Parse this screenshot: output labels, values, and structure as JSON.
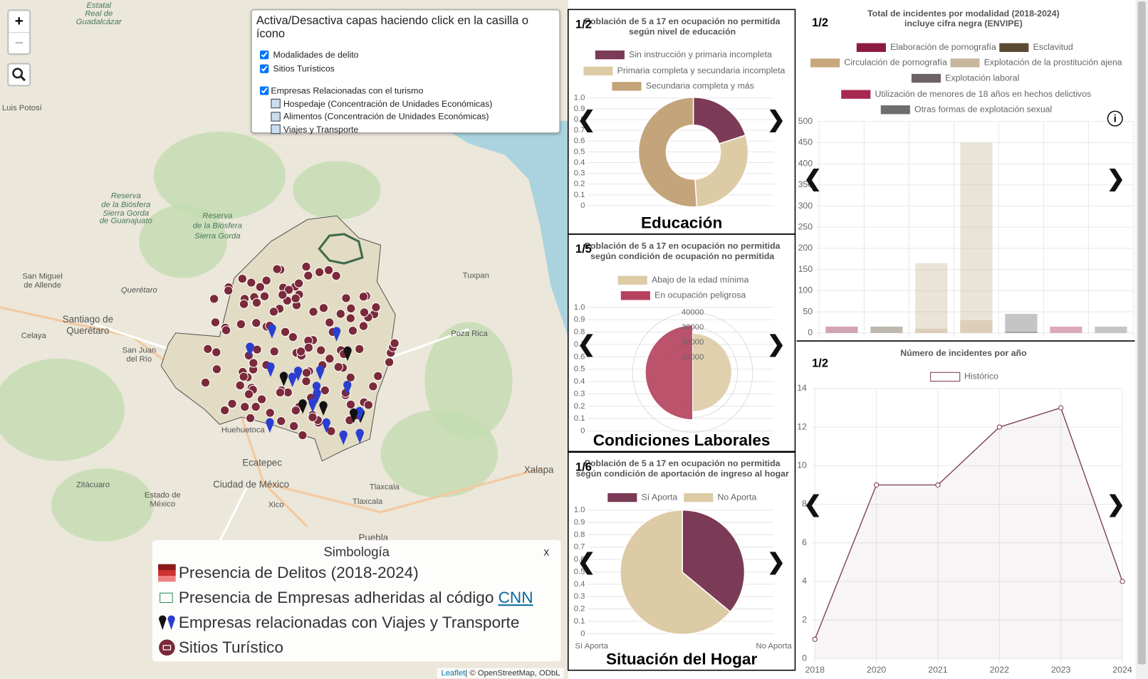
{
  "map": {
    "zoom_in": "+",
    "zoom_out": "−",
    "layers": {
      "title": "Activa/Desactiva capas haciendo click en la casilla o ícono",
      "items": [
        "Modalidades de delito",
        "Sitios Turísticos",
        "Empresas Relacionadas con el turismo"
      ],
      "subitems": [
        "Hospedaje (Concentración de Unidades Económicas)",
        "Alimentos (Concentración de Unidades Económicas)",
        "Viajes y Transporte"
      ]
    },
    "legend": {
      "title": "Simbología",
      "close": "x",
      "items": [
        "Presencia de Delitos (2018-2024)",
        "Presencia de Empresas adheridas al código",
        "Empresas relacionadas con Viajes y Transporte",
        "Sitios Turístico"
      ],
      "link": "CNN"
    },
    "attribution": [
      "Leaflet",
      "| ©",
      "OpenStreetMap",
      ", ODbL"
    ],
    "places": [
      "Estatal",
      "Real de",
      "Guadalcázar",
      "Luis Potosí",
      "Reserva",
      "de la Biósfera",
      "Sierra Gorda",
      "de Guanajuato",
      "Reserva",
      "de la Biósfera",
      "Sierra Gorda",
      "San Miguel",
      "de Allende",
      "Querétaro",
      "Santiago de",
      "Querétaro",
      "Celaya",
      "San Juan",
      "del Río",
      "Tuxpan",
      "Poza Rica",
      "Huehuetoca",
      "Ecatepec",
      "Ciudad de México",
      "Zitácuaro",
      "Estado de",
      "México",
      "Xico",
      "Tlaxcala",
      "Tlaxcala",
      "Xalapa",
      "Puebla"
    ]
  },
  "nav": {
    "prev": "❮",
    "next": "❯",
    "info": "i"
  },
  "panels": [
    {
      "page": "1/2",
      "caption": "Educación"
    },
    {
      "page": "1/5",
      "caption": "Condiciones Laborales"
    },
    {
      "page": "1/6",
      "caption": "Situación del Hogar"
    },
    {
      "page": "1/2"
    },
    {
      "page": "1/2"
    }
  ],
  "chart_data": [
    {
      "type": "doughnut",
      "title": [
        "Población de 5 a 17 en ocupación no permitida",
        "según nivel de educación"
      ],
      "categories": [
        "Sin instrucción y primaria incompleta",
        "Primaria completa y secundaria incompleta",
        "Secundaria completa y más"
      ],
      "values": [
        20,
        29,
        51
      ],
      "colors": [
        "#7b3a55",
        "#ddcba6",
        "#c4a47a"
      ],
      "ylim": [
        0,
        1
      ],
      "yticks": [
        0,
        0.1,
        0.2,
        0.3,
        0.4,
        0.5,
        0.6,
        0.7,
        0.8,
        0.9,
        {
          "value": 1,
          "label": "1.0"
        }
      ]
    },
    {
      "type": "polarArea",
      "title": [
        "Población de 5 a 17 en ocupación no permitida",
        "según condición de ocupación no permitida"
      ],
      "categories": [
        "Abajo de la edad mínima",
        "En ocupación peligrosa"
      ],
      "values": [
        26000,
        31500
      ],
      "colors": [
        "#ddcba6",
        "#b5415e"
      ],
      "rlim": [
        0,
        40000
      ],
      "rticks": [
        10000,
        20000,
        30000,
        40000
      ],
      "ylim": [
        0,
        1
      ],
      "yticks": [
        0,
        0.1,
        0.2,
        0.3,
        0.4,
        0.5,
        0.6,
        0.7,
        0.8,
        0.9,
        {
          "value": 1,
          "label": "1.0"
        }
      ]
    },
    {
      "type": "pie",
      "title": [
        "Población de 5 a 17 en ocupación no permitida",
        "según condición de aportación de ingreso al hogar"
      ],
      "categories": [
        "Sí Aporta",
        "No Aporta"
      ],
      "values": [
        36,
        64
      ],
      "colors": [
        "#7b3a55",
        "#ddcba6"
      ],
      "ylim": [
        0,
        1
      ],
      "yticks": [
        0,
        0.1,
        0.2,
        0.3,
        0.4,
        0.5,
        0.6,
        0.7,
        0.8,
        0.9,
        {
          "value": 1,
          "label": "1.0"
        }
      ]
    },
    {
      "type": "bar",
      "title": [
        "Total de incidentes por modalidad (2018-2024)",
        "incluye cifra negra (ENVIPE)"
      ],
      "categories": [
        null,
        null,
        null,
        null,
        null,
        null,
        null
      ],
      "series": [
        {
          "name": "Elaboración de pornografía",
          "color": "#8c1c3f",
          "values": [
            15,
            null,
            null,
            null,
            null,
            null,
            null
          ]
        },
        {
          "name": "Esclavitud",
          "color": "#5b4a33",
          "values": [
            null,
            15,
            null,
            null,
            null,
            null,
            null
          ]
        },
        {
          "name": "Circulación de pornografía",
          "color": "#c9a77c",
          "values": [
            null,
            null,
            10,
            30,
            null,
            null,
            null
          ]
        },
        {
          "name": "Explotación de la prostitución ajena",
          "color": "#c9b89e",
          "values": [
            null,
            null,
            165,
            450,
            null,
            null,
            null
          ]
        },
        {
          "name": "Explotación laboral",
          "color": "#6e6168",
          "values": [
            null,
            null,
            null,
            null,
            3,
            null,
            null
          ]
        },
        {
          "name": "Utilización de menores de 18 años en hechos delictivos",
          "color": "#a8294f",
          "values": [
            null,
            null,
            null,
            null,
            null,
            15,
            null
          ]
        },
        {
          "name": "Otras formas de explotación sexual",
          "color": "#6e6e6e",
          "values": [
            null,
            null,
            null,
            null,
            45,
            null,
            15
          ]
        }
      ],
      "ylim": [
        0,
        500
      ],
      "yticks": [
        0,
        50,
        100,
        150,
        200,
        250,
        300,
        350,
        400,
        450,
        500
      ],
      "grid": true
    },
    {
      "type": "line",
      "title": "Número de incidentes por año",
      "categories": [
        "2018",
        "2020",
        "2021",
        "2022",
        "2023",
        "2024"
      ],
      "series": [
        {
          "name": "Histórico",
          "color": "#7a3a4e",
          "values": [
            1,
            9,
            9,
            12,
            13,
            4
          ]
        }
      ],
      "ylim": [
        0,
        14
      ],
      "yticks": [
        0,
        2,
        4,
        6,
        8,
        10,
        12,
        14
      ],
      "grid": true
    }
  ]
}
